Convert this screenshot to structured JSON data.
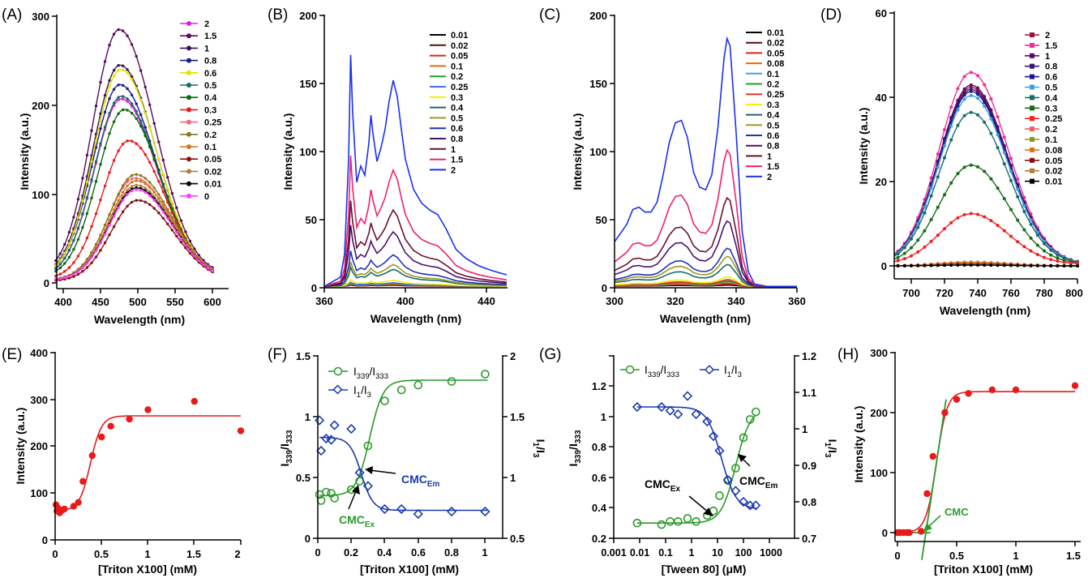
{
  "figure": {
    "panels": [
      "(A)",
      "(B)",
      "(C)",
      "(D)",
      "(E)",
      "(F)",
      "(G)",
      "(H)"
    ]
  },
  "chart_data": [
    {
      "panel": "(A)",
      "type": "line",
      "xlabel": "Wavelength (nm)",
      "ylabel": "Intensity (a.u.)",
      "xlim": [
        390,
        610
      ],
      "ylim": [
        0,
        300
      ],
      "xticks": [
        400,
        450,
        500,
        550,
        600
      ],
      "yticks": [
        0,
        100,
        200,
        300
      ],
      "curve_shape": {
        "sigma_left": 36,
        "sigma_right": 48
      },
      "legend_placement": "right",
      "series": [
        {
          "name": "2",
          "color": "#e020e0",
          "peak_x": 478,
          "peak": 207,
          "base": 6
        },
        {
          "name": "1.5",
          "color": "#5a0a5a",
          "peak_x": 475,
          "peak": 285,
          "base": 8
        },
        {
          "name": "1",
          "color": "#3a1450",
          "peak_x": 476,
          "peak": 245,
          "base": 7
        },
        {
          "name": "0.8",
          "color": "#1a1a8a",
          "peak_x": 476,
          "peak": 223,
          "base": 7
        },
        {
          "name": "0.6",
          "color": "#e8e000",
          "peak_x": 477,
          "peak": 240,
          "base": 7
        },
        {
          "name": "0.5",
          "color": "#1a6a6a",
          "peak_x": 478,
          "peak": 210,
          "base": 6
        },
        {
          "name": "0.4",
          "color": "#0c6a0c",
          "peak_x": 482,
          "peak": 195,
          "base": 6
        },
        {
          "name": "0.3",
          "color": "#e81a1a",
          "peak_x": 488,
          "peak": 160,
          "base": 4
        },
        {
          "name": "0.25",
          "color": "#f06a7a",
          "peak_x": 496,
          "peak": 118,
          "base": 3
        },
        {
          "name": "0.2",
          "color": "#8a7a1a",
          "peak_x": 497,
          "peak": 122,
          "base": 3
        },
        {
          "name": "0.1",
          "color": "#d07a20",
          "peak_x": 498,
          "peak": 115,
          "base": 3
        },
        {
          "name": "0.05",
          "color": "#8a1010",
          "peak_x": 500,
          "peak": 93,
          "base": 2
        },
        {
          "name": "0.02",
          "color": "#b08040",
          "peak_x": 498,
          "peak": 110,
          "base": 3
        },
        {
          "name": "0.01",
          "color": "#000000",
          "peak_x": 498,
          "peak": 107,
          "base": 3
        },
        {
          "name": "0",
          "color": "#ff40ff",
          "peak_x": 498,
          "peak": 105,
          "base": 3
        }
      ]
    },
    {
      "panel": "(B)",
      "type": "line",
      "xlabel": "Wavelength (nm)",
      "ylabel": "Intensity (a.u.)",
      "xlim": [
        360,
        450
      ],
      "ylim": [
        0,
        200
      ],
      "xticks": [
        360,
        400,
        440
      ],
      "yticks": [
        0,
        50,
        100,
        150,
        200
      ],
      "profile_x": [
        360,
        368,
        370,
        372,
        373,
        374,
        376,
        378,
        380,
        382,
        383,
        384,
        386,
        388,
        390,
        392,
        394,
        396,
        398,
        400,
        404,
        408,
        412,
        416,
        420,
        425,
        430,
        436,
        442,
        448,
        450
      ],
      "profile_y": [
        0.0,
        0.04,
        0.14,
        0.55,
        1.0,
        0.75,
        0.45,
        0.52,
        0.48,
        0.62,
        0.74,
        0.66,
        0.54,
        0.6,
        0.68,
        0.8,
        0.89,
        0.82,
        0.68,
        0.55,
        0.42,
        0.36,
        0.33,
        0.31,
        0.25,
        0.16,
        0.12,
        0.09,
        0.07,
        0.055,
        0.05
      ],
      "legend_placement": "top-right",
      "series": [
        {
          "name": "0.01",
          "color": "#000000",
          "scale": 1
        },
        {
          "name": "0.02",
          "color": "#5a0a0a",
          "scale": 1.2
        },
        {
          "name": "0.05",
          "color": "#e02020",
          "scale": 1.5
        },
        {
          "name": "0.1",
          "color": "#e07000",
          "scale": 2
        },
        {
          "name": "0.2",
          "color": "#20a020",
          "scale": 2.5
        },
        {
          "name": "0.25",
          "color": "#4a6aff",
          "scale": 3
        },
        {
          "name": "0.3",
          "color": "#f0f000",
          "scale": 5
        },
        {
          "name": "0.4",
          "color": "#1a6a6a",
          "scale": 14
        },
        {
          "name": "0.5",
          "color": "#9a9a20",
          "scale": 18
        },
        {
          "name": "0.6",
          "color": "#2030c0",
          "scale": 26
        },
        {
          "name": "0.8",
          "color": "#4a1070",
          "scale": 45
        },
        {
          "name": "1",
          "color": "#6a1030",
          "scale": 63
        },
        {
          "name": "1.5",
          "color": "#f02070",
          "scale": 96
        },
        {
          "name": "2",
          "color": "#1a30f0",
          "scale": 170
        }
      ]
    },
    {
      "panel": "(C)",
      "type": "line",
      "xlabel": "Wavelength (nm)",
      "ylabel": "Intensity (a.u.)",
      "xlim": [
        300,
        360
      ],
      "ylim": [
        0,
        200
      ],
      "xticks": [
        300,
        320,
        340,
        360
      ],
      "yticks": [
        0,
        50,
        100,
        150,
        200
      ],
      "profile_x": [
        300,
        304,
        306,
        308,
        310,
        312,
        314,
        316,
        318,
        320,
        322,
        324,
        326,
        328,
        330,
        332,
        334,
        336,
        337,
        338,
        340,
        342,
        344,
        346,
        350,
        355,
        360
      ],
      "profile_y": [
        0.18,
        0.25,
        0.31,
        0.32,
        0.3,
        0.3,
        0.34,
        0.45,
        0.58,
        0.66,
        0.67,
        0.6,
        0.46,
        0.4,
        0.39,
        0.45,
        0.64,
        0.92,
        1.0,
        0.97,
        0.62,
        0.22,
        0.06,
        0.01,
        0.0,
        0.0,
        0.0
      ],
      "legend_placement": "top-right",
      "series": [
        {
          "name": "0.01",
          "color": "#000000",
          "scale": 1
        },
        {
          "name": "0.02",
          "color": "#5a0a0a",
          "scale": 1.5
        },
        {
          "name": "0.05",
          "color": "#e02020",
          "scale": 2
        },
        {
          "name": "0.08",
          "color": "#e07000",
          "scale": 3
        },
        {
          "name": "0.1",
          "color": "#40a0e0",
          "scale": 3.5
        },
        {
          "name": "0.2",
          "color": "#20a020",
          "scale": 4
        },
        {
          "name": "0.25",
          "color": "#f03030",
          "scale": 5
        },
        {
          "name": "0.3",
          "color": "#f0f000",
          "scale": 7
        },
        {
          "name": "0.4",
          "color": "#1a6a6a",
          "scale": 16
        },
        {
          "name": "0.5",
          "color": "#9a9a20",
          "scale": 22
        },
        {
          "name": "0.6",
          "color": "#2030c0",
          "scale": 28
        },
        {
          "name": "0.8",
          "color": "#4a1070",
          "scale": 48
        },
        {
          "name": "1",
          "color": "#6a1030",
          "scale": 65
        },
        {
          "name": "1.5",
          "color": "#f02070",
          "scale": 100
        },
        {
          "name": "2",
          "color": "#1a30f0",
          "scale": 182
        }
      ]
    },
    {
      "panel": "(D)",
      "type": "line",
      "xlabel": "Wavelength (nm)",
      "ylabel": "Intensity (a.u.)",
      "xlim": [
        690,
        800
      ],
      "ylim": [
        -3,
        60
      ],
      "xticks": [
        700,
        720,
        740,
        760,
        780,
        800
      ],
      "yticks": [
        0,
        20,
        40,
        60
      ],
      "curve_shape": {
        "center": 736,
        "sigma_left": 19,
        "sigma_right": 22
      },
      "legend_placement": "top-right",
      "series": [
        {
          "name": "2",
          "color": "#a01040",
          "peak": 42
        },
        {
          "name": "1.5",
          "color": "#f03090",
          "peak": 45.5
        },
        {
          "name": "1",
          "color": "#5a0a6a",
          "peak": 42.5
        },
        {
          "name": "0.8",
          "color": "#3a1a70",
          "peak": 41.5
        },
        {
          "name": "0.6",
          "color": "#1a1a90",
          "peak": 41
        },
        {
          "name": "0.5",
          "color": "#40a0e0",
          "peak": 40
        },
        {
          "name": "0.4",
          "color": "#1a6a6a",
          "peak": 36
        },
        {
          "name": "0.3",
          "color": "#1a6a1a",
          "peak": 23.5
        },
        {
          "name": "0.25",
          "color": "#f02020",
          "peak": 12
        },
        {
          "name": "0.2",
          "color": "#f06060",
          "peak": 0.9
        },
        {
          "name": "0.1",
          "color": "#8a9a20",
          "peak": 0.7
        },
        {
          "name": "0.08",
          "color": "#e07020",
          "peak": 0.6
        },
        {
          "name": "0.05",
          "color": "#8a1010",
          "peak": 0.4
        },
        {
          "name": "0.02",
          "color": "#b08040",
          "peak": 0.3
        },
        {
          "name": "0.01",
          "color": "#000000",
          "peak": 0.2
        }
      ]
    },
    {
      "panel": "(E)",
      "type": "scatter",
      "xlabel": "[Triton X100] (mM)",
      "ylabel": "Intensity (a.u.)",
      "xlim": [
        0,
        2.0
      ],
      "ylim": [
        0,
        400
      ],
      "xticks": [
        0.0,
        0.5,
        1.0,
        1.5,
        2.0
      ],
      "yticks": [
        0,
        100,
        200,
        300,
        400
      ],
      "points": {
        "x": [
          0.01,
          0.02,
          0.03,
          0.05,
          0.08,
          0.1,
          0.2,
          0.25,
          0.3,
          0.4,
          0.5,
          0.6,
          0.8,
          1.0,
          1.5,
          2.0
        ],
        "y": [
          75,
          62,
          68,
          58,
          64,
          66,
          72,
          80,
          125,
          180,
          220,
          243,
          258,
          278,
          296,
          233
        ]
      },
      "fit": {
        "bottom": 62,
        "top": 265,
        "x50": 0.38,
        "width": 0.06
      },
      "color": "#e81a1a"
    },
    {
      "panel": "(F)",
      "type": "scatter",
      "xlabel": "[Triton X100] (mM)",
      "ylabel": "I339/I333",
      "ylabel_right": "I1/I3",
      "xlim": [
        0,
        1.1
      ],
      "ylim": [
        0,
        1.5
      ],
      "ylim_right": [
        0.5,
        2.0
      ],
      "xticks": [
        0.0,
        0.2,
        0.4,
        0.6,
        0.8,
        1.0
      ],
      "yticks": [
        0.0,
        0.5,
        1.0,
        1.5
      ],
      "yticks_right": [
        0.5,
        1.0,
        1.5,
        2.0
      ],
      "legend_placement": "top-left",
      "series": [
        {
          "name": "I339/I333",
          "axis": "left",
          "color": "#2a9a2a",
          "marker": "circle",
          "x": [
            0.01,
            0.02,
            0.05,
            0.08,
            0.1,
            0.2,
            0.25,
            0.3,
            0.4,
            0.5,
            0.6,
            0.8,
            1.0
          ],
          "y": [
            0.36,
            0.31,
            0.38,
            0.37,
            0.33,
            0.4,
            0.47,
            0.76,
            1.13,
            1.22,
            1.26,
            1.29,
            1.35
          ],
          "fit": {
            "bottom": 0.35,
            "top": 1.3,
            "x50": 0.31,
            "width": 0.04
          }
        },
        {
          "name": "I1/I3",
          "axis": "right",
          "color": "#1a3ab0",
          "marker": "diamond",
          "x": [
            0.01,
            0.02,
            0.05,
            0.08,
            0.1,
            0.2,
            0.25,
            0.3,
            0.4,
            0.5,
            0.6,
            0.8,
            1.0
          ],
          "y": [
            1.47,
            1.22,
            1.32,
            1.31,
            1.43,
            1.4,
            1.04,
            0.93,
            0.74,
            0.74,
            0.7,
            0.72,
            0.72
          ],
          "fit": {
            "bottom": 1.33,
            "top": 0.73,
            "x50": 0.26,
            "width": 0.035
          }
        }
      ],
      "annotations": [
        {
          "text": "CMC",
          "sub": "Em",
          "color": "#1a3ab0"
        },
        {
          "text": "CMC",
          "sub": "Ex",
          "color": "#2a9a2a"
        }
      ]
    },
    {
      "panel": "(G)",
      "type": "scatter",
      "xlabel": "[Tween 80] (μM)",
      "ylabel": "I339/I333",
      "ylabel_right": "I1/I3",
      "xscale": "log",
      "xlim": [
        0.001,
        1000
      ],
      "ylim": [
        0.2,
        1.2
      ],
      "ylim_right": [
        0.7,
        1.2
      ],
      "xticks": [
        0.001,
        0.01,
        0.1,
        1,
        10,
        100,
        1000
      ],
      "xtick_labels": [
        "0.001",
        "0.01",
        "0.1",
        "1",
        "10",
        "100",
        "1000"
      ],
      "yticks": [
        0.2,
        0.4,
        0.6,
        0.8,
        1.0,
        1.2
      ],
      "yticks_right": [
        0.7,
        0.8,
        0.9,
        1.0,
        1.1,
        1.2
      ],
      "legend_placement": "top",
      "series": [
        {
          "name": "I339/I333",
          "axis": "left",
          "color": "#2a9a2a",
          "marker": "circle",
          "x": [
            0.008,
            0.07,
            0.15,
            0.3,
            0.7,
            1.5,
            4,
            7,
            12,
            25,
            50,
            100,
            180,
            300
          ],
          "y": [
            0.3,
            0.29,
            0.31,
            0.31,
            0.33,
            0.31,
            0.35,
            0.38,
            0.48,
            0.58,
            0.66,
            0.86,
            0.98,
            1.03
          ],
          "fit": {
            "bottom": 0.3,
            "top": 1.05,
            "log_x50": 1.7,
            "log_width": 0.28
          }
        },
        {
          "name": "I1/I3",
          "axis": "right",
          "color": "#1a3ab0",
          "marker": "diamond",
          "x": [
            0.008,
            0.07,
            0.15,
            0.3,
            0.7,
            1.5,
            4,
            7,
            12,
            25,
            50,
            100,
            180,
            300
          ],
          "y": [
            1.06,
            1.06,
            1.05,
            1.04,
            1.09,
            1.04,
            1.02,
            0.98,
            0.94,
            0.86,
            0.83,
            0.8,
            0.79,
            0.79
          ],
          "fit": {
            "bottom": 1.06,
            "top": 0.78,
            "log_x50": 1.15,
            "log_width": 0.28
          }
        }
      ],
      "annotations": [
        {
          "text": "CMC",
          "sub": "Ex",
          "color": "#000000"
        },
        {
          "text": "CMC",
          "sub": "Em",
          "color": "#000000"
        }
      ]
    },
    {
      "panel": "(H)",
      "type": "scatter",
      "xlabel": "[Triton X100] (mM)",
      "ylabel": "Intensity (a.u.)",
      "xlim": [
        -0.05,
        1.55
      ],
      "ylim": [
        -10,
        300
      ],
      "xticks": [
        0.0,
        0.5,
        1.0,
        1.5
      ],
      "yticks": [
        0,
        100,
        200,
        300
      ],
      "points": {
        "x": [
          0.0,
          0.02,
          0.05,
          0.08,
          0.1,
          0.2,
          0.25,
          0.3,
          0.4,
          0.5,
          0.6,
          0.8,
          1.0,
          1.5
        ],
        "y": [
          0,
          0,
          0,
          0,
          0,
          2,
          65,
          127,
          200,
          222,
          232,
          238,
          238,
          245
        ]
      },
      "fit": {
        "bottom": 0,
        "top": 235,
        "x50": 0.33,
        "width": 0.045
      },
      "tangent": {
        "x0": 0.205,
        "x1": 0.41
      },
      "color": "#e81a1a",
      "tangent_color": "#2a9a2a",
      "annotations": [
        {
          "text": "CMC",
          "color": "#2a9a2a"
        }
      ]
    }
  ]
}
